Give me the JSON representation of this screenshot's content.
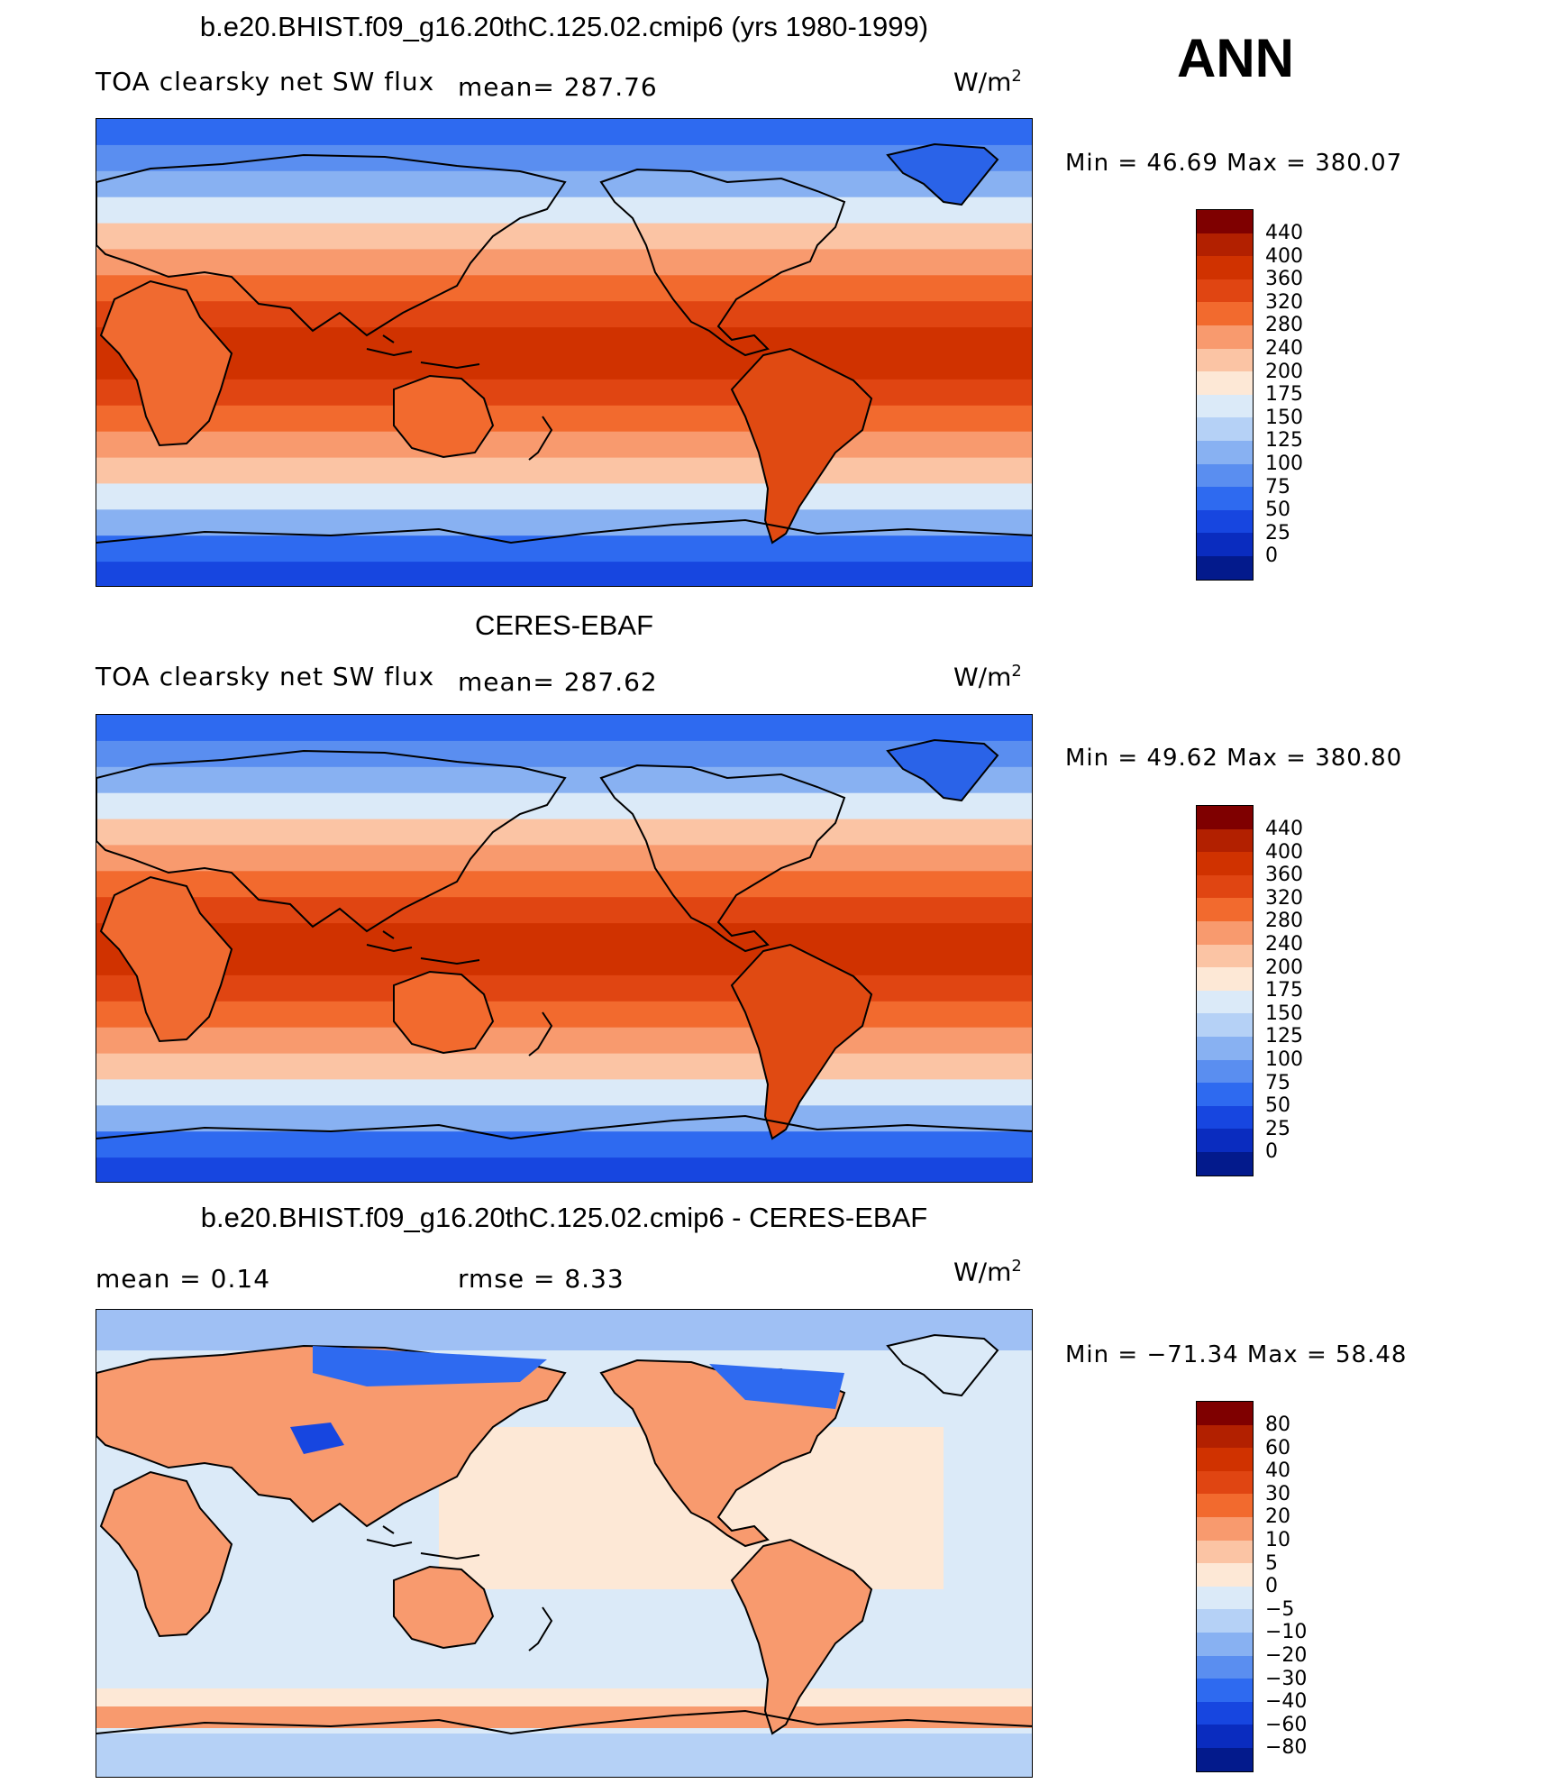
{
  "season": "ANN",
  "units_label": "W/m",
  "units_exp": "2",
  "panels": [
    {
      "title": "b.e20.BHIST.f09_g16.20thC.125.02.cmip6 (yrs 1980-1999)",
      "subtitle": "TOA clearsky net SW flux",
      "stat1": "mean= 287.76",
      "minmax": "Min =   46.69 Max = 380.07",
      "levels": [
        "440",
        "400",
        "360",
        "320",
        "280",
        "240",
        "200",
        "175",
        "150",
        "125",
        "100",
        "75",
        "50",
        "25",
        "0"
      ],
      "colors": [
        "#7f0000",
        "#b22000",
        "#d03200",
        "#e04512",
        "#f26a2e",
        "#f89a6e",
        "#fbc4a4",
        "#fde8d6",
        "#dbeaf8",
        "#b5d1f6",
        "#88b1f2",
        "#5a8ef0",
        "#2e6af0",
        "#1746e0",
        "#0a2cbf",
        "#031a8c"
      ]
    },
    {
      "title": "CERES-EBAF",
      "subtitle": "TOA clearsky net SW flux",
      "stat1": "mean= 287.62",
      "minmax": "Min =   49.62 Max = 380.80",
      "levels": [
        "440",
        "400",
        "360",
        "320",
        "280",
        "240",
        "200",
        "175",
        "150",
        "125",
        "100",
        "75",
        "50",
        "25",
        "0"
      ],
      "colors": [
        "#7f0000",
        "#b22000",
        "#d03200",
        "#e04512",
        "#f26a2e",
        "#f89a6e",
        "#fbc4a4",
        "#fde8d6",
        "#dbeaf8",
        "#b5d1f6",
        "#88b1f2",
        "#5a8ef0",
        "#2e6af0",
        "#1746e0",
        "#0a2cbf",
        "#031a8c"
      ]
    },
    {
      "title": "b.e20.BHIST.f09_g16.20thC.125.02.cmip6 - CERES-EBAF",
      "subtitle": "mean =    0.14",
      "stat1": "rmse =    8.33",
      "minmax": "Min = −71.34 Max =   58.48",
      "levels": [
        "80",
        "60",
        "40",
        "30",
        "20",
        "10",
        "5",
        "0",
        "−5",
        "−10",
        "−20",
        "−30",
        "−40",
        "−60",
        "−80"
      ],
      "colors": [
        "#7f0000",
        "#b22000",
        "#d03200",
        "#e04512",
        "#f26a2e",
        "#f89a6e",
        "#fbc4a4",
        "#fde8d6",
        "#dbeaf8",
        "#b5d1f6",
        "#88b1f2",
        "#5a8ef0",
        "#2e6af0",
        "#1746e0",
        "#0a2cbf",
        "#031a8c"
      ]
    }
  ]
}
